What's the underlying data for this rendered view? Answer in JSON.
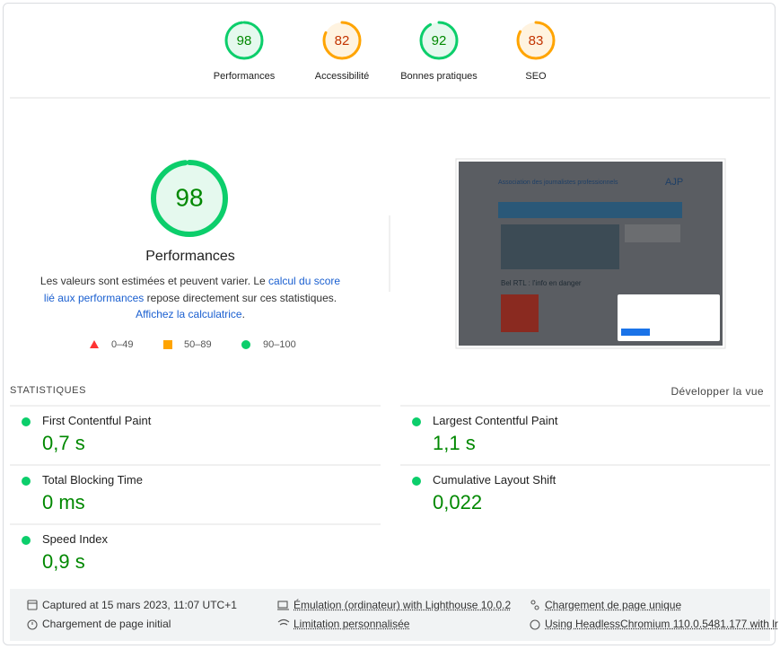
{
  "gauges": [
    {
      "score": 98,
      "label": "Performances",
      "grade": "pass"
    },
    {
      "score": 82,
      "label": "Accessibilité",
      "grade": "average"
    },
    {
      "score": 92,
      "label": "Bonnes pratiques",
      "grade": "pass"
    },
    {
      "score": 83,
      "label": "SEO",
      "grade": "average"
    }
  ],
  "main": {
    "score": 98,
    "title": "Performances",
    "description": [
      {
        "text": "Les valeurs sont estimées et peuvent varier. Le "
      },
      {
        "text": "calcul du score lié aux performances",
        "link": true
      },
      {
        "text": " repose directement sur ces statistiques. "
      },
      {
        "text": "Affichez la calculatrice",
        "link": true
      },
      {
        "text": "."
      }
    ],
    "legend": [
      "0–49",
      "50–89",
      "90–100"
    ]
  },
  "thumbnail": {
    "site_title": "Association des journalistes professionnels",
    "logo": "AJP",
    "headline": "Bel RTL : l'info en danger"
  },
  "metrics_header": {
    "title": "STATISTIQUES",
    "toggle": "Développer la vue"
  },
  "metrics": [
    {
      "name": "First Contentful Paint",
      "value": "0,7 s"
    },
    {
      "name": "Largest Contentful Paint",
      "value": "1,1 s"
    },
    {
      "name": "Total Blocking Time",
      "value": "0 ms"
    },
    {
      "name": "Cumulative Layout Shift",
      "value": "0,022"
    },
    {
      "name": "Speed Index",
      "value": "0,9 s"
    }
  ],
  "footer": [
    "Captured at 15 mars 2023, 11:07 UTC+1",
    "Émulation (ordinateur) with Lighthouse 10.0.2",
    "Chargement de page unique",
    "Chargement de page initial",
    "Limitation personnalisée",
    "Using HeadlessChromium 110.0.5481.177 with lr"
  ]
}
